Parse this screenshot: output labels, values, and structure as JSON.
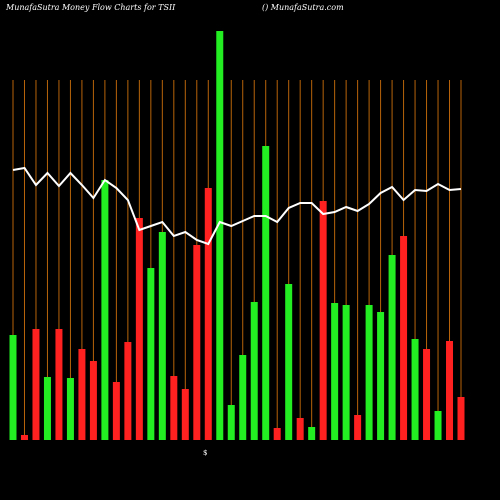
{
  "chart_data": {
    "type": "bar",
    "title": "MunafaSutra  Money Flow  Charts for TSII",
    "subtitle": "() MunafaSutra.com",
    "annotation": "$",
    "ylim": [
      0,
      410
    ],
    "grid": true,
    "grid_color": "#b8640a",
    "background": "#000000",
    "bars": {
      "values": [
        105,
        5,
        111,
        63,
        111,
        62,
        91,
        79,
        260,
        58,
        98,
        222,
        172,
        208,
        64,
        51,
        195,
        252,
        409,
        35,
        85,
        138,
        294,
        12,
        156,
        22,
        13,
        239,
        137,
        135,
        25,
        135,
        128,
        185,
        204,
        101,
        91,
        29,
        99,
        43
      ],
      "colors": [
        "#22ee22",
        "#ff2020",
        "#ff2020",
        "#22ee22",
        "#ff2020",
        "#22ee22",
        "#ff2020",
        "#ff2020",
        "#22ee22",
        "#ff2020",
        "#ff2020",
        "#ff2020",
        "#22ee22",
        "#22ee22",
        "#ff2020",
        "#ff2020",
        "#ff2020",
        "#ff2020",
        "#22ee22",
        "#22ee22",
        "#22ee22",
        "#22ee22",
        "#22ee22",
        "#ff2020",
        "#22ee22",
        "#ff2020",
        "#22ee22",
        "#ff2020",
        "#22ee22",
        "#22ee22",
        "#ff2020",
        "#22ee22",
        "#22ee22",
        "#22ee22",
        "#ff2020",
        "#22ee22",
        "#ff2020",
        "#22ee22",
        "#ff2020",
        "#ff2020"
      ]
    },
    "line": {
      "color": "#ffffff",
      "values": [
        270,
        272,
        255,
        267,
        254,
        267,
        255,
        242,
        260,
        252,
        240,
        210,
        214,
        218,
        204,
        208,
        200,
        196,
        218,
        214,
        219,
        224,
        224,
        218,
        232,
        237,
        237,
        226,
        228,
        233,
        229,
        236,
        247,
        253,
        240,
        250,
        249,
        256,
        250,
        251
      ]
    }
  }
}
